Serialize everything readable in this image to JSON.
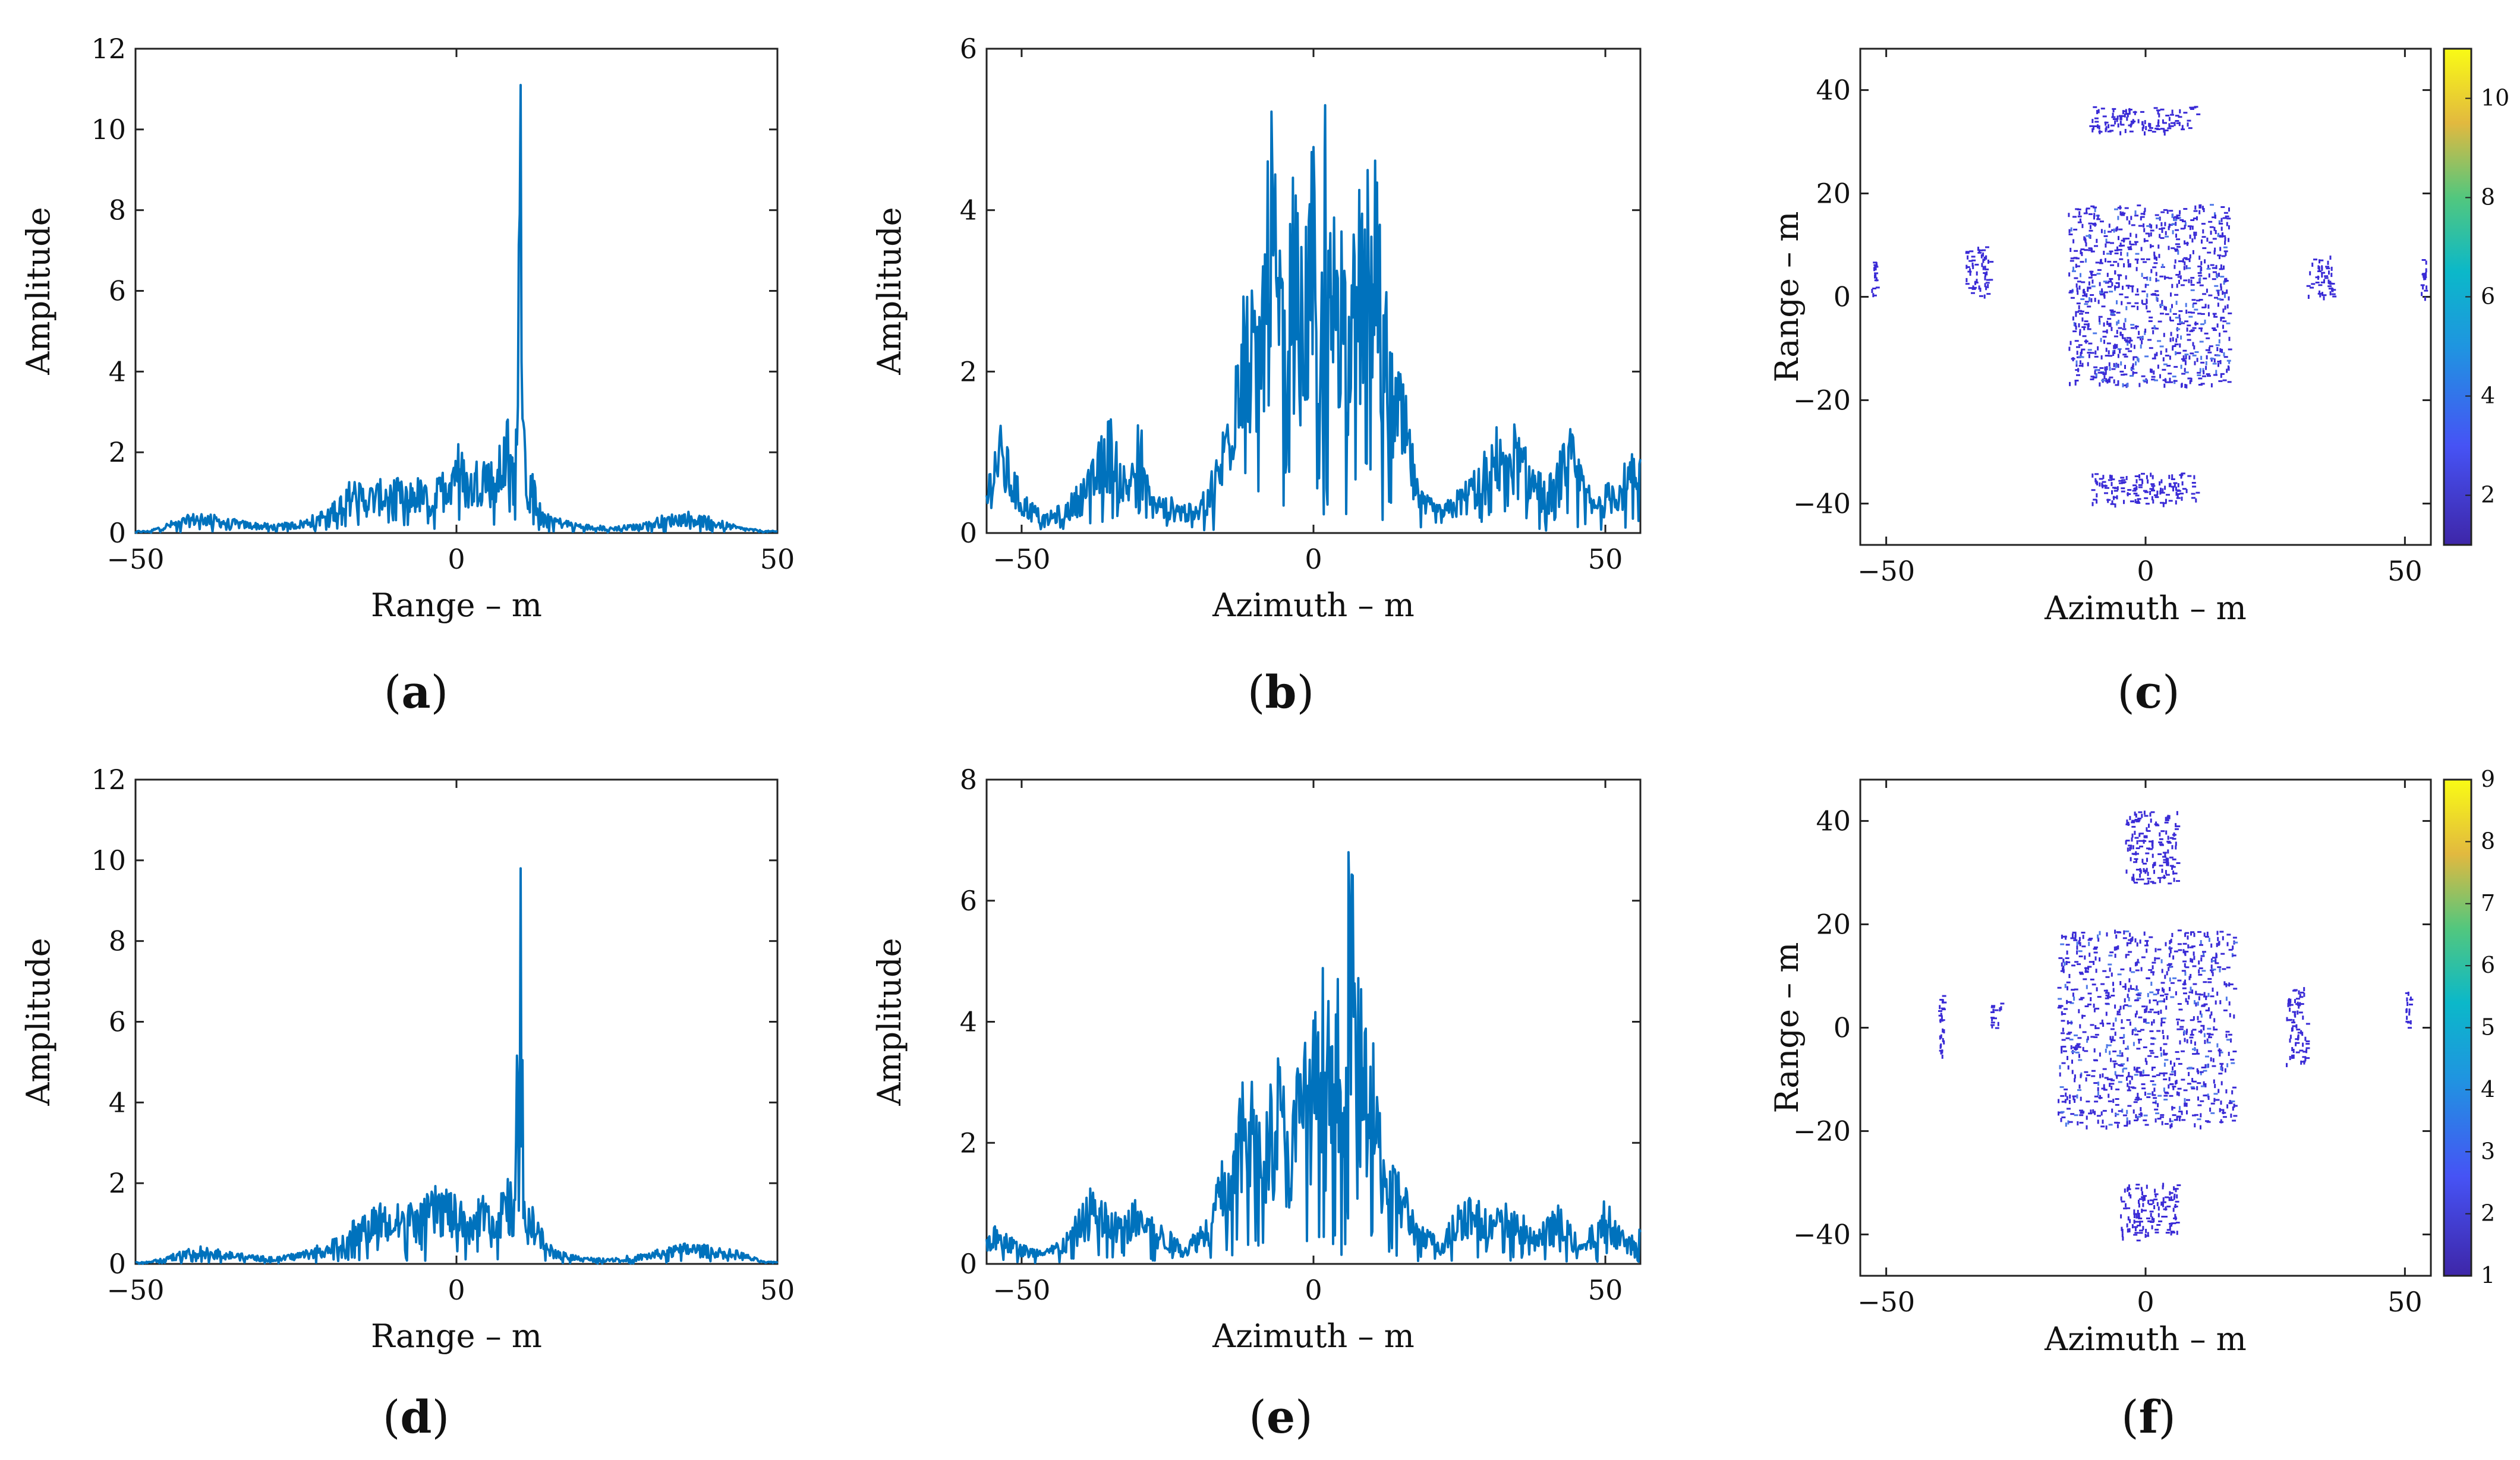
{
  "figure": {
    "panels": [
      {
        "id": "a",
        "label": "a"
      },
      {
        "id": "b",
        "label": "b"
      },
      {
        "id": "c",
        "label": "c"
      },
      {
        "id": "d",
        "label": "d"
      },
      {
        "id": "e",
        "label": "e"
      },
      {
        "id": "f",
        "label": "f"
      }
    ],
    "line_color": "#0072BD",
    "point_color": "#3a2bd6"
  },
  "chart_data": [
    {
      "id": "a",
      "type": "line",
      "xlabel": "Range – m",
      "ylabel": "Amplitude",
      "xlim": [
        -50,
        50
      ],
      "ylim": [
        0,
        12
      ],
      "xticks": [
        -50,
        0,
        50
      ],
      "xtick_labels": [
        "−50",
        "0",
        "50"
      ],
      "yticks": [
        0,
        2,
        4,
        6,
        8,
        10,
        12
      ],
      "x": [
        -48,
        -44,
        -40,
        -36,
        -32,
        -28,
        -24,
        -20,
        -18,
        -16,
        -14,
        -12,
        -10,
        -8,
        -6,
        -4,
        -2,
        0,
        2,
        4,
        6,
        8,
        9,
        10,
        10.5,
        11,
        12,
        14,
        16,
        20,
        24,
        28,
        32,
        36,
        40,
        44,
        48
      ],
      "y": [
        0.05,
        0.3,
        0.5,
        0.35,
        0.25,
        0.2,
        0.3,
        0.6,
        1.0,
        1.3,
        1.1,
        1.2,
        1.4,
        1.1,
        1.3,
        1.0,
        1.5,
        2.3,
        1.4,
        2.0,
        1.6,
        2.7,
        1.8,
        11.1,
        3.0,
        1.5,
        1.3,
        0.6,
        0.35,
        0.2,
        0.15,
        0.2,
        0.4,
        0.5,
        0.35,
        0.15,
        0.05
      ]
    },
    {
      "id": "b",
      "type": "line",
      "xlabel": "Azimuth – m",
      "ylabel": "Amplitude",
      "xlim": [
        -56,
        56
      ],
      "ylim": [
        0,
        6
      ],
      "xticks": [
        -50,
        0,
        50
      ],
      "xtick_labels": [
        "−50",
        "0",
        "50"
      ],
      "yticks": [
        0,
        2,
        4,
        6
      ],
      "x": [
        -56,
        -54,
        -50,
        -46,
        -42,
        -38,
        -35,
        -32,
        -30,
        -28,
        -24,
        -20,
        -16,
        -14,
        -12,
        -10,
        -8,
        -7,
        -6,
        -4,
        -2,
        0,
        1,
        2,
        3,
        4,
        6,
        8,
        10,
        12,
        14,
        16,
        18,
        22,
        26,
        30,
        33,
        36,
        40,
        44,
        48,
        52,
        56
      ],
      "y": [
        0.6,
        1.3,
        0.5,
        0.2,
        0.4,
        0.8,
        1.4,
        0.7,
        1.5,
        0.5,
        0.4,
        0.3,
        1.0,
        2.0,
        3.6,
        2.5,
        4.0,
        5.2,
        3.0,
        4.6,
        3.2,
        4.5,
        1.5,
        5.3,
        3.3,
        4.4,
        3.0,
        4.0,
        4.8,
        3.0,
        2.1,
        1.5,
        0.5,
        0.3,
        0.6,
        1.0,
        1.5,
        1.0,
        0.6,
        1.2,
        0.4,
        0.7,
        1.0
      ]
    },
    {
      "id": "c",
      "type": "scatter",
      "xlabel": "Azimuth – m",
      "ylabel": "Range – m",
      "xlim": [
        -55,
        55
      ],
      "ylim": [
        -48,
        48
      ],
      "xticks": [
        -50,
        0,
        50
      ],
      "xtick_labels": [
        "−50",
        "0",
        "50"
      ],
      "yticks": [
        -40,
        -20,
        0,
        20,
        40
      ],
      "ytick_labels": [
        "−40",
        "−20",
        "0",
        "20",
        "40"
      ],
      "colorbar": {
        "min": 1,
        "max": 11,
        "ticks": [
          2,
          4,
          6,
          8,
          10
        ]
      },
      "clusters": [
        {
          "x_range": [
            -15,
            16
          ],
          "y_range": [
            -17,
            18
          ],
          "value": 2
        },
        {
          "x_range": [
            -11,
            10
          ],
          "y_range": [
            32,
            37
          ],
          "value": 1
        },
        {
          "x_range": [
            -11,
            10
          ],
          "y_range": [
            -40,
            -34
          ],
          "value": 1
        },
        {
          "x_range": [
            -53,
            -52
          ],
          "y_range": [
            0,
            8
          ],
          "value": 1
        },
        {
          "x_range": [
            -35,
            -30
          ],
          "y_range": [
            0,
            10
          ],
          "value": 1
        },
        {
          "x_range": [
            31,
            36
          ],
          "y_range": [
            0,
            8
          ],
          "value": 1
        },
        {
          "x_range": [
            53,
            54
          ],
          "y_range": [
            0,
            8
          ],
          "value": 1
        }
      ]
    },
    {
      "id": "d",
      "type": "line",
      "xlabel": "Range – m",
      "ylabel": "Amplitude",
      "xlim": [
        -50,
        50
      ],
      "ylim": [
        0,
        12
      ],
      "xticks": [
        -50,
        0,
        50
      ],
      "xtick_labels": [
        "−50",
        "0",
        "50"
      ],
      "yticks": [
        0,
        2,
        4,
        6,
        8,
        10,
        12
      ],
      "x": [
        -48,
        -44,
        -40,
        -36,
        -32,
        -28,
        -24,
        -20,
        -18,
        -16,
        -14,
        -12,
        -10,
        -8,
        -6,
        -4,
        -2,
        0,
        2,
        4,
        6,
        8,
        9,
        10,
        10.5,
        11,
        12,
        14,
        16,
        20,
        24,
        28,
        32,
        36,
        40,
        44,
        48
      ],
      "y": [
        0.05,
        0.25,
        0.4,
        0.3,
        0.2,
        0.15,
        0.3,
        0.5,
        0.7,
        1.0,
        1.2,
        1.5,
        1.2,
        1.6,
        1.3,
        1.7,
        1.9,
        1.5,
        1.3,
        1.6,
        1.0,
        2.2,
        1.5,
        9.8,
        2.0,
        1.2,
        1.4,
        0.5,
        0.3,
        0.15,
        0.15,
        0.2,
        0.35,
        0.5,
        0.4,
        0.3,
        0.05
      ]
    },
    {
      "id": "e",
      "type": "line",
      "xlabel": "Azimuth – m",
      "ylabel": "Amplitude",
      "xlim": [
        -56,
        56
      ],
      "ylim": [
        0,
        8
      ],
      "xticks": [
        -50,
        0,
        50
      ],
      "xtick_labels": [
        "−50",
        "0",
        "50"
      ],
      "yticks": [
        0,
        2,
        4,
        6,
        8
      ],
      "x": [
        -56,
        -54,
        -50,
        -46,
        -42,
        -38,
        -34,
        -30,
        -26,
        -22,
        -18,
        -16,
        -14,
        -12,
        -10,
        -8,
        -6,
        -4,
        -2,
        0,
        1,
        2,
        3,
        4,
        5,
        6,
        8,
        10,
        12,
        14,
        16,
        18,
        22,
        26,
        30,
        34,
        38,
        42,
        46,
        50,
        54,
        56
      ],
      "y": [
        0.5,
        0.6,
        0.3,
        0.2,
        0.5,
        1.2,
        0.8,
        1.0,
        0.6,
        0.3,
        0.8,
        1.5,
        2.0,
        2.8,
        3.0,
        2.6,
        3.3,
        2.2,
        3.6,
        3.8,
        4.0,
        5.3,
        3.2,
        4.8,
        2.5,
        6.8,
        4.2,
        3.5,
        2.0,
        1.6,
        1.2,
        0.6,
        0.4,
        1.2,
        0.8,
        1.0,
        0.5,
        0.9,
        0.3,
        1.0,
        0.4,
        0.6
      ]
    },
    {
      "id": "f",
      "type": "scatter",
      "xlabel": "Azimuth – m",
      "ylabel": "Range – m",
      "xlim": [
        -55,
        55
      ],
      "ylim": [
        -48,
        48
      ],
      "xticks": [
        -50,
        0,
        50
      ],
      "xtick_labels": [
        "−50",
        "0",
        "50"
      ],
      "yticks": [
        -40,
        -20,
        0,
        20,
        40
      ],
      "ytick_labels": [
        "−40",
        "−20",
        "0",
        "20",
        "40"
      ],
      "colorbar": {
        "min": 1,
        "max": 9,
        "ticks": [
          1,
          2,
          3,
          4,
          5,
          6,
          7,
          8,
          9
        ]
      },
      "clusters": [
        {
          "x_range": [
            -17,
            17
          ],
          "y_range": [
            -19,
            19
          ],
          "value": 2
        },
        {
          "x_range": [
            -4,
            6
          ],
          "y_range": [
            28,
            42
          ],
          "value": 1
        },
        {
          "x_range": [
            -5,
            6
          ],
          "y_range": [
            -41,
            -30
          ],
          "value": 1
        },
        {
          "x_range": [
            -40,
            -39
          ],
          "y_range": [
            -6,
            8
          ],
          "value": 1
        },
        {
          "x_range": [
            -30,
            -28
          ],
          "y_range": [
            0,
            5
          ],
          "value": 1
        },
        {
          "x_range": [
            27,
            31
          ],
          "y_range": [
            -7,
            8
          ],
          "value": 1
        },
        {
          "x_range": [
            50,
            51
          ],
          "y_range": [
            0,
            8
          ],
          "value": 1
        }
      ]
    }
  ]
}
